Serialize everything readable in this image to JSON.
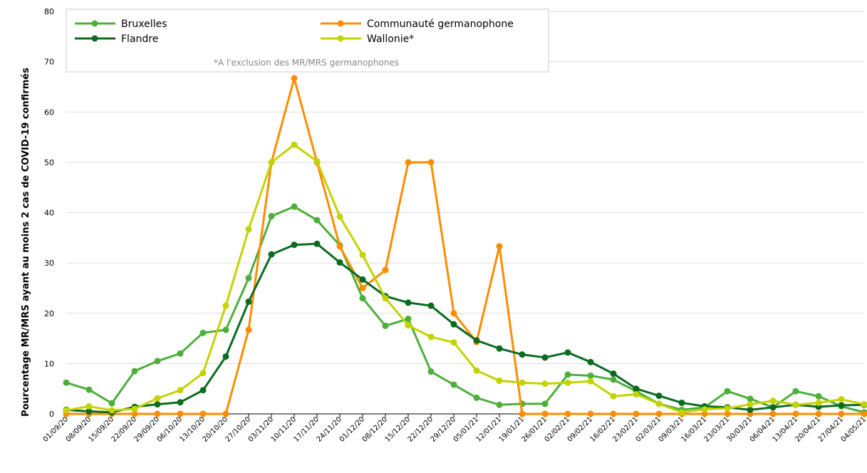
{
  "chart_data": {
    "type": "line",
    "y_label": "Pourcentage MR/MRS ayant au moins 2 cas de COVID-19 confirmés",
    "note": "*A l'exclusion des MR/MRS germanophones",
    "categories": [
      "01/09/20",
      "08/09/20",
      "15/09/20",
      "22/09/20",
      "29/09/20",
      "06/10/20",
      "13/10/20",
      "20/10/20",
      "27/10/20",
      "03/11/20",
      "10/11/20",
      "17/11/20",
      "24/11/20",
      "01/12/20",
      "08/12/20",
      "15/12/20",
      "22/12/20",
      "29/12/20",
      "05/01/21",
      "12/01/21",
      "19/01/21",
      "26/01/21",
      "02/02/21",
      "09/02/21",
      "16/02/21",
      "23/02/21",
      "02/03/21",
      "09/03/21",
      "16/03/21",
      "23/03/21",
      "30/03/21",
      "06/04/21",
      "13/04/21",
      "20/04/21",
      "27/04/21",
      "04/05/21"
    ],
    "series": [
      {
        "name": "Bruxelles",
        "color": "#4caf3a",
        "values": [
          6.2,
          4.8,
          2.1,
          8.5,
          10.5,
          12,
          16.1,
          16.7,
          27,
          39.3,
          41.2,
          38.5,
          33.5,
          23,
          17.5,
          18.9,
          8.4,
          5.8,
          3.2,
          1.8,
          2,
          2,
          7.8,
          7.6,
          6.8,
          4.5,
          2,
          0.8,
          1.3,
          4.5,
          3,
          1.3,
          4.5,
          3.5,
          1.5,
          0.3
        ]
      },
      {
        "name": "Communauté germanophone",
        "color": "#ff8c00",
        "values": [
          0,
          0,
          0,
          0,
          0,
          0,
          0,
          0,
          16.7,
          50,
          66.7,
          50,
          33.3,
          25,
          28.6,
          50,
          50,
          20,
          14.3,
          33.3,
          0,
          0,
          0,
          0,
          0,
          0,
          0,
          0,
          0,
          0,
          0,
          0,
          0,
          0,
          0,
          0
        ]
      },
      {
        "name": "Flandre",
        "color": "#0b6b1f",
        "values": [
          0.8,
          0.5,
          0.3,
          1.4,
          1.9,
          2.3,
          4.7,
          11.4,
          22.3,
          31.7,
          33.6,
          33.8,
          30.1,
          26.7,
          23.4,
          22.1,
          21.5,
          17.8,
          14.6,
          13,
          11.8,
          11.2,
          12.2,
          10.3,
          8,
          5,
          3.6,
          2.2,
          1.5,
          1.3,
          0.8,
          1.3,
          1.8,
          1.4,
          1.7,
          1.8
        ]
      },
      {
        "name": "Wallonie*",
        "color": "#c3d300",
        "values": [
          0.7,
          1.5,
          0.7,
          1,
          3.1,
          4.7,
          8.1,
          21.5,
          36.7,
          50,
          53.5,
          50.2,
          39.2,
          31.6,
          23,
          17.6,
          15.3,
          14.2,
          8.6,
          6.6,
          6.2,
          6,
          6.2,
          6.5,
          3.5,
          3.9,
          2,
          0.3,
          0.9,
          1.1,
          1.9,
          2.6,
          1.8,
          2.2,
          2.9,
          1.9
        ]
      }
    ],
    "ylim": [
      0,
      80
    ],
    "yticks": [
      0,
      10,
      20,
      30,
      40,
      50,
      60,
      70,
      80
    ],
    "grid": true,
    "legend": "top-left"
  }
}
